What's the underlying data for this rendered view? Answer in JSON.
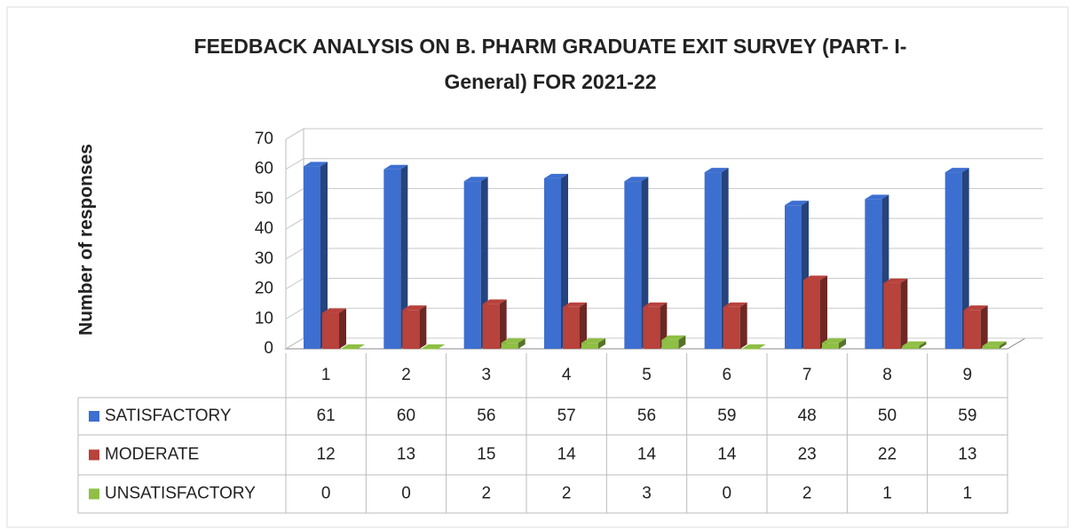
{
  "chart_data": {
    "type": "bar3d",
    "title": "FEEDBACK ANALYSIS ON B. PHARM GRADUATE EXIT SURVEY (PART- I- General)  FOR  2021-22",
    "y_label": "Number of responses",
    "categories": [
      "1",
      "2",
      "3",
      "4",
      "5",
      "6",
      "7",
      "8",
      "9"
    ],
    "series": [
      {
        "name": "SATISFACTORY",
        "color": "#3d6fd0",
        "values": [
          61,
          60,
          56,
          57,
          56,
          59,
          48,
          50,
          59
        ]
      },
      {
        "name": "MODERATE",
        "color": "#b8423c",
        "values": [
          12,
          13,
          15,
          14,
          14,
          14,
          23,
          22,
          13
        ]
      },
      {
        "name": "UNSATISFACTORY",
        "color": "#8fbf45",
        "values": [
          0,
          0,
          2,
          2,
          3,
          0,
          2,
          1,
          1
        ]
      }
    ],
    "ylim": [
      0,
      70
    ],
    "yticks": [
      0,
      10,
      20,
      30,
      40,
      50,
      60,
      70
    ],
    "grid": true
  }
}
